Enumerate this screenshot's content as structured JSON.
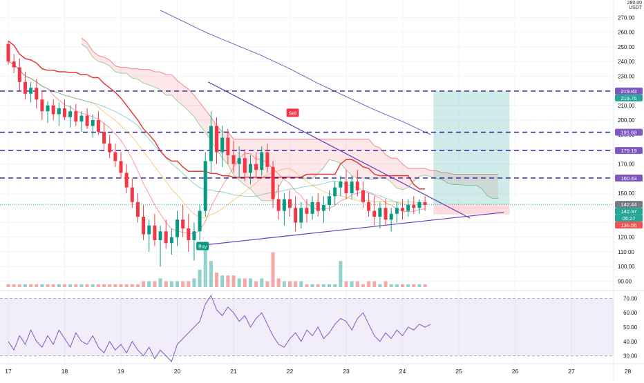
{
  "currency": "USDT",
  "top_axis_partial": "280.00",
  "chart_data": [
    {
      "type": "candlestick",
      "title": "",
      "y_axis_label": "USDT",
      "ylim": [
        85,
        282
      ],
      "y_ticks": [
        270,
        260,
        250,
        240,
        230,
        220,
        210,
        200,
        190,
        180,
        170,
        160,
        150,
        140,
        130,
        120,
        110,
        100,
        90
      ],
      "x_ticks": [
        "17",
        "18",
        "19",
        "20",
        "21",
        "22",
        "23",
        "24",
        "25",
        "26",
        "27",
        "28"
      ],
      "xlim_days": [
        17,
        28.2
      ],
      "horizontal_levels": [
        219.83,
        191.69,
        179.19,
        160.43
      ],
      "price_labels": [
        {
          "text": "219.83",
          "value": 219.83,
          "color": "#7e57c2"
        },
        {
          "text": "219.75",
          "value": 219.75,
          "color": "#26a69a"
        },
        {
          "text": "191.69",
          "value": 191.69,
          "color": "#7e57c2"
        },
        {
          "text": "179.19",
          "value": 179.19,
          "color": "#7e57c2"
        },
        {
          "text": "160.43",
          "value": 160.43,
          "color": "#7e57c2"
        },
        {
          "text": "142.44",
          "value": 142.44,
          "color": "#787b86"
        },
        {
          "text": "142.37",
          "value": 142.37,
          "color": "#26a69a"
        },
        {
          "text": "06:27",
          "value": 142.37,
          "color": "#26a69a"
        },
        {
          "text": "135.56",
          "value": 135.56,
          "color": "#ef5350"
        }
      ],
      "last_price": 142.37,
      "countdown": "06:27",
      "position_tool": {
        "entry": 142.37,
        "target": 219.75,
        "stop": 135.56,
        "x_from": 24.55,
        "x_to": 25.9
      },
      "triangle_lines": [
        {
          "x": [
            20.55,
            25.2
          ],
          "y": [
            226,
            133
          ]
        },
        {
          "x": [
            20.55,
            25.8
          ],
          "y": [
            115,
            137
          ]
        }
      ],
      "markers": [
        {
          "text": "Sell",
          "x": 22.05,
          "y": 205,
          "color": "#f23645"
        },
        {
          "text": "Buy",
          "x": 20.45,
          "y": 114,
          "color": "#089981"
        }
      ],
      "ma_long": {
        "x": [
          19.7,
          20.5,
          21.0,
          21.5,
          22.0,
          22.5,
          23.0,
          23.5,
          24.0,
          24.5
        ],
        "y": [
          275,
          260,
          252,
          244,
          235,
          225,
          216,
          207,
          199,
          190
        ],
        "color": "#7e57c2"
      },
      "candles": [
        [
          17.0,
          252,
          254,
          238,
          240
        ],
        [
          17.1,
          240,
          245,
          232,
          236
        ],
        [
          17.2,
          236,
          242,
          220,
          226
        ],
        [
          17.3,
          226,
          233,
          214,
          218
        ],
        [
          17.4,
          218,
          226,
          212,
          222
        ],
        [
          17.5,
          222,
          228,
          208,
          214
        ],
        [
          17.6,
          214,
          220,
          200,
          206
        ],
        [
          17.7,
          206,
          213,
          198,
          210
        ],
        [
          17.8,
          210,
          214,
          200,
          204
        ],
        [
          17.9,
          204,
          212,
          196,
          208
        ],
        [
          18.0,
          208,
          214,
          200,
          202
        ],
        [
          18.1,
          202,
          210,
          195,
          206
        ],
        [
          18.2,
          206,
          211,
          196,
          199
        ],
        [
          18.3,
          199,
          206,
          192,
          203
        ],
        [
          18.4,
          203,
          208,
          194,
          196
        ],
        [
          18.5,
          196,
          204,
          188,
          200
        ],
        [
          18.6,
          200,
          206,
          190,
          192
        ],
        [
          18.7,
          192,
          198,
          180,
          184
        ],
        [
          18.8,
          184,
          190,
          174,
          178
        ],
        [
          18.9,
          178,
          184,
          168,
          172
        ],
        [
          19.0,
          172,
          178,
          160,
          164
        ],
        [
          19.1,
          164,
          170,
          150,
          154
        ],
        [
          19.2,
          154,
          160,
          140,
          144
        ],
        [
          19.3,
          144,
          150,
          130,
          134
        ],
        [
          19.4,
          134,
          142,
          118,
          122
        ],
        [
          19.5,
          122,
          132,
          110,
          128
        ],
        [
          19.6,
          128,
          136,
          114,
          118
        ],
        [
          19.7,
          118,
          128,
          100,
          124
        ],
        [
          19.8,
          124,
          132,
          112,
          116
        ],
        [
          19.9,
          116,
          126,
          108,
          120
        ],
        [
          20.0,
          120,
          138,
          114,
          132
        ],
        [
          20.1,
          132,
          142,
          120,
          126
        ],
        [
          20.2,
          126,
          136,
          110,
          118
        ],
        [
          20.3,
          118,
          130,
          104,
          124
        ],
        [
          20.4,
          124,
          142,
          118,
          138
        ],
        [
          20.5,
          138,
          178,
          134,
          172
        ],
        [
          20.6,
          172,
          206,
          164,
          196
        ],
        [
          20.7,
          196,
          202,
          170,
          178
        ],
        [
          20.8,
          178,
          196,
          168,
          188
        ],
        [
          20.9,
          188,
          194,
          170,
          176
        ],
        [
          21.0,
          176,
          186,
          164,
          170
        ],
        [
          21.1,
          170,
          182,
          160,
          174
        ],
        [
          21.2,
          174,
          180,
          158,
          164
        ],
        [
          21.3,
          164,
          176,
          156,
          170
        ],
        [
          21.4,
          170,
          178,
          160,
          166
        ],
        [
          21.5,
          166,
          182,
          162,
          178
        ],
        [
          21.6,
          178,
          184,
          164,
          168
        ],
        [
          21.7,
          168,
          172,
          140,
          146
        ],
        [
          21.8,
          146,
          156,
          132,
          138
        ],
        [
          21.9,
          138,
          150,
          128,
          146
        ],
        [
          22.0,
          146,
          152,
          134,
          140
        ],
        [
          22.1,
          140,
          148,
          124,
          130
        ],
        [
          22.2,
          130,
          144,
          126,
          140
        ],
        [
          22.3,
          140,
          146,
          130,
          136
        ],
        [
          22.4,
          136,
          148,
          132,
          144
        ],
        [
          22.5,
          144,
          150,
          134,
          138
        ],
        [
          22.6,
          138,
          148,
          130,
          142
        ],
        [
          22.7,
          142,
          152,
          138,
          148
        ],
        [
          22.8,
          148,
          158,
          142,
          154
        ],
        [
          22.9,
          154,
          162,
          148,
          158
        ],
        [
          23.0,
          158,
          166,
          146,
          150
        ],
        [
          23.1,
          150,
          162,
          146,
          158
        ],
        [
          23.2,
          158,
          166,
          148,
          152
        ],
        [
          23.3,
          152,
          158,
          140,
          144
        ],
        [
          23.4,
          144,
          150,
          134,
          138
        ],
        [
          23.5,
          138,
          148,
          128,
          134
        ],
        [
          23.6,
          134,
          144,
          126,
          140
        ],
        [
          23.7,
          140,
          146,
          128,
          132
        ],
        [
          23.8,
          132,
          140,
          124,
          136
        ],
        [
          23.9,
          136,
          144,
          130,
          140
        ],
        [
          24.0,
          140,
          146,
          132,
          138
        ],
        [
          24.1,
          138,
          146,
          134,
          142
        ],
        [
          24.2,
          142,
          148,
          136,
          140
        ],
        [
          24.3,
          140,
          146,
          136,
          144
        ],
        [
          24.4,
          144,
          148,
          138,
          142
        ]
      ],
      "volume": [
        [
          17.0,
          1,
          0
        ],
        [
          17.1,
          1,
          0
        ],
        [
          17.2,
          1,
          0
        ],
        [
          17.3,
          1,
          1
        ],
        [
          17.4,
          1,
          0
        ],
        [
          17.5,
          1,
          0
        ],
        [
          17.6,
          1,
          1
        ],
        [
          17.7,
          1,
          0
        ],
        [
          17.8,
          1,
          0
        ],
        [
          17.9,
          1,
          1
        ],
        [
          18.0,
          1,
          0
        ],
        [
          18.1,
          1,
          1
        ],
        [
          18.2,
          1,
          0
        ],
        [
          18.3,
          1,
          1
        ],
        [
          18.4,
          1,
          0
        ],
        [
          18.5,
          1,
          1
        ],
        [
          18.6,
          1,
          0
        ],
        [
          18.7,
          1,
          0
        ],
        [
          18.8,
          1,
          0
        ],
        [
          18.9,
          1,
          0
        ],
        [
          19.0,
          1,
          0
        ],
        [
          19.1,
          1,
          0
        ],
        [
          19.2,
          1,
          0
        ],
        [
          19.3,
          1,
          0
        ],
        [
          19.4,
          2,
          0
        ],
        [
          19.5,
          2,
          1
        ],
        [
          19.6,
          2,
          0
        ],
        [
          19.7,
          3,
          1
        ],
        [
          19.8,
          2,
          0
        ],
        [
          19.9,
          2,
          1
        ],
        [
          20.0,
          2,
          1
        ],
        [
          20.1,
          2,
          0
        ],
        [
          20.2,
          2,
          0
        ],
        [
          20.3,
          3,
          1
        ],
        [
          20.4,
          6,
          1
        ],
        [
          20.5,
          14,
          1
        ],
        [
          20.6,
          9,
          1
        ],
        [
          20.7,
          5,
          0
        ],
        [
          20.8,
          4,
          1
        ],
        [
          20.9,
          4,
          0
        ],
        [
          21.0,
          4,
          0
        ],
        [
          21.1,
          3,
          1
        ],
        [
          21.2,
          3,
          0
        ],
        [
          21.3,
          3,
          1
        ],
        [
          21.4,
          2,
          0
        ],
        [
          21.5,
          3,
          1
        ],
        [
          21.6,
          2,
          0
        ],
        [
          21.7,
          12,
          0
        ],
        [
          21.8,
          3,
          0
        ],
        [
          21.9,
          2,
          1
        ],
        [
          22.0,
          2,
          0
        ],
        [
          22.1,
          2,
          0
        ],
        [
          22.2,
          2,
          1
        ],
        [
          22.3,
          1,
          0
        ],
        [
          22.4,
          1,
          1
        ],
        [
          22.5,
          1,
          0
        ],
        [
          22.6,
          1,
          1
        ],
        [
          22.7,
          1,
          1
        ],
        [
          22.8,
          1,
          1
        ],
        [
          22.9,
          9,
          1
        ],
        [
          23.0,
          2,
          0
        ],
        [
          23.1,
          2,
          1
        ],
        [
          23.2,
          2,
          0
        ],
        [
          23.3,
          1,
          0
        ],
        [
          23.4,
          2,
          0
        ],
        [
          23.5,
          2,
          0
        ],
        [
          23.6,
          1,
          1
        ],
        [
          23.7,
          2,
          0
        ],
        [
          23.8,
          1,
          1
        ],
        [
          23.9,
          1,
          1
        ],
        [
          24.0,
          1,
          0
        ],
        [
          24.1,
          1,
          1
        ],
        [
          24.2,
          1,
          0
        ],
        [
          24.3,
          1,
          1
        ],
        [
          24.4,
          1,
          0
        ]
      ]
    },
    {
      "type": "line",
      "title": "",
      "ylim": [
        25,
        75
      ],
      "y_ticks": [
        70,
        60,
        50,
        40,
        30
      ],
      "bands": [
        70,
        30
      ],
      "series": [
        {
          "x": [
            17.0,
            17.1,
            17.2,
            17.3,
            17.4,
            17.5,
            17.6,
            17.7,
            17.8,
            17.9,
            18.0,
            18.1,
            18.2,
            18.3,
            18.4,
            18.5,
            18.6,
            18.7,
            18.8,
            18.9,
            19.0,
            19.1,
            19.2,
            19.3,
            19.4,
            19.5,
            19.6,
            19.7,
            19.8,
            19.9,
            20.0,
            20.1,
            20.2,
            20.3,
            20.4,
            20.5,
            20.6,
            20.7,
            20.8,
            20.9,
            21.0,
            21.1,
            21.2,
            21.3,
            21.4,
            21.5,
            21.6,
            21.7,
            21.8,
            21.9,
            22.0,
            22.1,
            22.2,
            22.3,
            22.4,
            22.5,
            22.6,
            22.7,
            22.8,
            22.9,
            23.0,
            23.1,
            23.2,
            23.3,
            23.4,
            23.5,
            23.6,
            23.7,
            23.8,
            23.9,
            24.0,
            24.1,
            24.2,
            24.3,
            24.4,
            24.5
          ],
          "values": [
            40,
            34,
            44,
            38,
            48,
            40,
            36,
            44,
            38,
            48,
            42,
            36,
            46,
            40,
            38,
            44,
            36,
            32,
            40,
            34,
            38,
            32,
            40,
            34,
            30,
            36,
            28,
            34,
            30,
            26,
            38,
            42,
            46,
            50,
            54,
            66,
            72,
            62,
            58,
            64,
            60,
            54,
            58,
            50,
            56,
            60,
            52,
            44,
            38,
            36,
            42,
            46,
            40,
            48,
            44,
            50,
            42,
            46,
            52,
            56,
            54,
            48,
            56,
            60,
            52,
            44,
            40,
            46,
            42,
            48,
            44,
            50,
            48,
            52,
            50,
            52
          ],
          "color": "#7e57c2"
        }
      ]
    }
  ]
}
